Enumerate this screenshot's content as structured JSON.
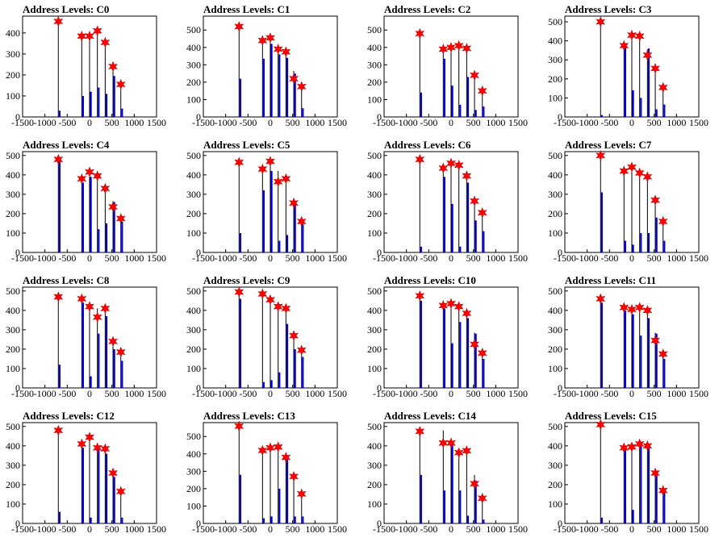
{
  "chart_data": [
    {
      "type": "bar",
      "title": "Address Levels: C0",
      "xlim": [
        -1500,
        1500
      ],
      "ylim": [
        0,
        480
      ],
      "xticks": [
        -1500,
        -1000,
        -500,
        0,
        500,
        1000,
        1500
      ],
      "yticks": [
        0,
        100,
        200,
        300,
        400
      ],
      "bins": [
        {
          "x": -700,
          "bar": 30,
          "line": 460,
          "marker": 455
        },
        {
          "x": -175,
          "bar": 100,
          "line": 385,
          "marker": 385
        },
        {
          "x": 0,
          "bar": 120,
          "line": 390,
          "marker": 385
        },
        {
          "x": 175,
          "bar": 140,
          "line": 405,
          "marker": 410
        },
        {
          "x": 350,
          "bar": 110,
          "line": 355,
          "marker": 355
        },
        {
          "x": 525,
          "bar": 195,
          "line": 240,
          "marker": 240
        },
        {
          "x": 700,
          "bar": 40,
          "line": 155,
          "marker": 155
        }
      ]
    },
    {
      "type": "bar",
      "title": "Address Levels: C1",
      "xlim": [
        -1500,
        1500
      ],
      "ylim": [
        0,
        580
      ],
      "xticks": [
        -1500,
        -1000,
        -500,
        0,
        500,
        1000,
        1500
      ],
      "yticks": [
        0,
        100,
        200,
        300,
        400,
        500
      ],
      "bins": [
        {
          "x": -700,
          "bar": 220,
          "line": 520,
          "marker": 520
        },
        {
          "x": -175,
          "bar": 335,
          "line": 440,
          "marker": 440
        },
        {
          "x": 0,
          "bar": 420,
          "line": 455,
          "marker": 455
        },
        {
          "x": 175,
          "bar": 360,
          "line": 395,
          "marker": 390
        },
        {
          "x": 350,
          "bar": 340,
          "line": 375,
          "marker": 375
        },
        {
          "x": 525,
          "bar": 250,
          "line": 265,
          "marker": 220
        },
        {
          "x": 700,
          "bar": 50,
          "line": 170,
          "marker": 175
        }
      ]
    },
    {
      "type": "bar",
      "title": "Address Levels: C2",
      "xlim": [
        -1500,
        1500
      ],
      "ylim": [
        0,
        580
      ],
      "xticks": [
        -1500,
        -1000,
        -500,
        0,
        500,
        1000,
        1500
      ],
      "yticks": [
        0,
        100,
        200,
        300,
        400,
        500
      ],
      "bins": [
        {
          "x": -700,
          "bar": 140,
          "line": 480,
          "marker": 480
        },
        {
          "x": -175,
          "bar": 335,
          "line": 395,
          "marker": 390
        },
        {
          "x": 0,
          "bar": 180,
          "line": 410,
          "marker": 400
        },
        {
          "x": 175,
          "bar": 70,
          "line": 405,
          "marker": 410
        },
        {
          "x": 350,
          "bar": 230,
          "line": 395,
          "marker": 395
        },
        {
          "x": 525,
          "bar": 40,
          "line": 245,
          "marker": 240
        },
        {
          "x": 700,
          "bar": 60,
          "line": 150,
          "marker": 150
        }
      ]
    },
    {
      "type": "bar",
      "title": "Address Levels: C3",
      "xlim": [
        -1500,
        1500
      ],
      "ylim": [
        0,
        530
      ],
      "xticks": [
        -1500,
        -1000,
        -500,
        0,
        500,
        1000,
        1500
      ],
      "yticks": [
        0,
        100,
        200,
        300,
        400,
        500
      ],
      "bins": [
        {
          "x": -700,
          "bar": 10,
          "line": 500,
          "marker": 500
        },
        {
          "x": -175,
          "bar": 365,
          "line": 375,
          "marker": 375
        },
        {
          "x": 0,
          "bar": 140,
          "line": 430,
          "marker": 430
        },
        {
          "x": 175,
          "bar": 100,
          "line": 425,
          "marker": 425
        },
        {
          "x": 350,
          "bar": 360,
          "line": 355,
          "marker": 325
        },
        {
          "x": 525,
          "bar": 40,
          "line": 255,
          "marker": 255
        },
        {
          "x": 700,
          "bar": 65,
          "line": 155,
          "marker": 155
        }
      ]
    },
    {
      "type": "bar",
      "title": "Address Levels: C4",
      "xlim": [
        -1500,
        1500
      ],
      "ylim": [
        0,
        520
      ],
      "xticks": [
        -1500,
        -1000,
        -500,
        0,
        500,
        1000,
        1500
      ],
      "yticks": [
        0,
        100,
        200,
        300,
        400,
        500
      ],
      "bins": [
        {
          "x": -700,
          "bar": 480,
          "line": 485,
          "marker": 480
        },
        {
          "x": -175,
          "bar": 360,
          "line": 375,
          "marker": 380
        },
        {
          "x": 0,
          "bar": 390,
          "line": 415,
          "marker": 415
        },
        {
          "x": 175,
          "bar": 120,
          "line": 400,
          "marker": 395
        },
        {
          "x": 350,
          "bar": 150,
          "line": 330,
          "marker": 330
        },
        {
          "x": 525,
          "bar": 260,
          "line": 265,
          "marker": 235
        },
        {
          "x": 700,
          "bar": 160,
          "line": 175,
          "marker": 175
        }
      ]
    },
    {
      "type": "bar",
      "title": "Address Levels: C5",
      "xlim": [
        -1500,
        1500
      ],
      "ylim": [
        0,
        520
      ],
      "xticks": [
        -1500,
        -1000,
        -500,
        0,
        500,
        1000,
        1500
      ],
      "yticks": [
        0,
        100,
        200,
        300,
        400,
        500
      ],
      "bins": [
        {
          "x": -700,
          "bar": 100,
          "line": 465,
          "marker": 465
        },
        {
          "x": -175,
          "bar": 320,
          "line": 430,
          "marker": 430
        },
        {
          "x": 0,
          "bar": 420,
          "line": 470,
          "marker": 470
        },
        {
          "x": 175,
          "bar": 60,
          "line": 420,
          "marker": 365
        },
        {
          "x": 350,
          "bar": 90,
          "line": 375,
          "marker": 380
        },
        {
          "x": 525,
          "bar": 250,
          "line": 255,
          "marker": 255
        },
        {
          "x": 700,
          "bar": 150,
          "line": 160,
          "marker": 160
        }
      ]
    },
    {
      "type": "bar",
      "title": "Address Levels: C6",
      "xlim": [
        -1500,
        1500
      ],
      "ylim": [
        0,
        520
      ],
      "xticks": [
        -1500,
        -1000,
        -500,
        0,
        500,
        1000,
        1500
      ],
      "yticks": [
        0,
        100,
        200,
        300,
        400,
        500
      ],
      "bins": [
        {
          "x": -700,
          "bar": 30,
          "line": 475,
          "marker": 480
        },
        {
          "x": -175,
          "bar": 390,
          "line": 435,
          "marker": 435
        },
        {
          "x": 0,
          "bar": 250,
          "line": 460,
          "marker": 460
        },
        {
          "x": 175,
          "bar": 30,
          "line": 445,
          "marker": 450
        },
        {
          "x": 350,
          "bar": 360,
          "line": 395,
          "marker": 395
        },
        {
          "x": 525,
          "bar": 165,
          "line": 260,
          "marker": 265
        },
        {
          "x": 700,
          "bar": 110,
          "line": 205,
          "marker": 205
        }
      ]
    },
    {
      "type": "bar",
      "title": "Address Levels: C7",
      "xlim": [
        -1500,
        1500
      ],
      "ylim": [
        0,
        520
      ],
      "xticks": [
        -1500,
        -1000,
        -500,
        0,
        500,
        1000,
        1500
      ],
      "yticks": [
        0,
        100,
        200,
        300,
        400,
        500
      ],
      "bins": [
        {
          "x": -700,
          "bar": 310,
          "line": 500,
          "marker": 500
        },
        {
          "x": -175,
          "bar": 60,
          "line": 420,
          "marker": 420
        },
        {
          "x": 0,
          "bar": 40,
          "line": 440,
          "marker": 440
        },
        {
          "x": 175,
          "bar": 100,
          "line": 410,
          "marker": 410
        },
        {
          "x": 350,
          "bar": 100,
          "line": 390,
          "marker": 390
        },
        {
          "x": 525,
          "bar": 180,
          "line": 275,
          "marker": 270
        },
        {
          "x": 700,
          "bar": 60,
          "line": 160,
          "marker": 160
        }
      ]
    },
    {
      "type": "bar",
      "title": "Address Levels: C8",
      "xlim": [
        -1500,
        1500
      ],
      "ylim": [
        0,
        520
      ],
      "xticks": [
        -1500,
        -1000,
        -500,
        0,
        500,
        1000,
        1500
      ],
      "yticks": [
        0,
        100,
        200,
        300,
        400,
        500
      ],
      "bins": [
        {
          "x": -700,
          "bar": 120,
          "line": 470,
          "marker": 470
        },
        {
          "x": -175,
          "bar": 440,
          "line": 460,
          "marker": 460
        },
        {
          "x": 0,
          "bar": 60,
          "line": 420,
          "marker": 420
        },
        {
          "x": 175,
          "bar": 280,
          "line": 410,
          "marker": 365
        },
        {
          "x": 350,
          "bar": 370,
          "line": 410,
          "marker": 410
        },
        {
          "x": 525,
          "bar": 200,
          "line": 240,
          "marker": 240
        },
        {
          "x": 700,
          "bar": 140,
          "line": 185,
          "marker": 185
        }
      ]
    },
    {
      "type": "bar",
      "title": "Address Levels: C9",
      "xlim": [
        -1500,
        1500
      ],
      "ylim": [
        0,
        520
      ],
      "xticks": [
        -1500,
        -1000,
        -500,
        0,
        500,
        1000,
        1500
      ],
      "yticks": [
        0,
        100,
        200,
        300,
        400,
        500
      ],
      "bins": [
        {
          "x": -700,
          "bar": 460,
          "line": 500,
          "marker": 495
        },
        {
          "x": -175,
          "bar": 30,
          "line": 485,
          "marker": 485
        },
        {
          "x": 0,
          "bar": 40,
          "line": 455,
          "marker": 455
        },
        {
          "x": 175,
          "bar": 80,
          "line": 420,
          "marker": 420
        },
        {
          "x": 350,
          "bar": 330,
          "line": 410,
          "marker": 410
        },
        {
          "x": 525,
          "bar": 200,
          "line": 270,
          "marker": 270
        },
        {
          "x": 700,
          "bar": 160,
          "line": 195,
          "marker": 195
        }
      ]
    },
    {
      "type": "bar",
      "title": "Address Levels: C10",
      "xlim": [
        -1500,
        1500
      ],
      "ylim": [
        0,
        520
      ],
      "xticks": [
        -1500,
        -1000,
        -500,
        0,
        500,
        1000,
        1500
      ],
      "yticks": [
        0,
        100,
        200,
        300,
        400,
        500
      ],
      "bins": [
        {
          "x": -700,
          "bar": 450,
          "line": 480,
          "marker": 475
        },
        {
          "x": -175,
          "bar": 410,
          "line": 425,
          "marker": 425
        },
        {
          "x": 0,
          "bar": 230,
          "line": 460,
          "marker": 435
        },
        {
          "x": 175,
          "bar": 340,
          "line": 425,
          "marker": 420
        },
        {
          "x": 350,
          "bar": 360,
          "line": 385,
          "marker": 385
        },
        {
          "x": 525,
          "bar": 280,
          "line": 285,
          "marker": 225
        },
        {
          "x": 700,
          "bar": 150,
          "line": 180,
          "marker": 180
        }
      ]
    },
    {
      "type": "bar",
      "title": "Address Levels: C11",
      "xlim": [
        -1500,
        1500
      ],
      "ylim": [
        0,
        520
      ],
      "xticks": [
        -1500,
        -1000,
        -500,
        0,
        500,
        1000,
        1500
      ],
      "yticks": [
        0,
        100,
        200,
        300,
        400,
        500
      ],
      "bins": [
        {
          "x": -700,
          "bar": 440,
          "line": 460,
          "marker": 460
        },
        {
          "x": -175,
          "bar": 400,
          "line": 420,
          "marker": 415
        },
        {
          "x": 0,
          "bar": 380,
          "line": 410,
          "marker": 405
        },
        {
          "x": 175,
          "bar": 270,
          "line": 415,
          "marker": 415
        },
        {
          "x": 350,
          "bar": 360,
          "line": 400,
          "marker": 400
        },
        {
          "x": 525,
          "bar": 280,
          "line": 285,
          "marker": 245
        },
        {
          "x": 700,
          "bar": 150,
          "line": 175,
          "marker": 175
        }
      ]
    },
    {
      "type": "bar",
      "title": "Address Levels: C12",
      "xlim": [
        -1500,
        1500
      ],
      "ylim": [
        0,
        520
      ],
      "xticks": [
        -1500,
        -1000,
        -500,
        0,
        500,
        1000,
        1500
      ],
      "yticks": [
        0,
        100,
        200,
        300,
        400,
        500
      ],
      "bins": [
        {
          "x": -700,
          "bar": 60,
          "line": 480,
          "marker": 480
        },
        {
          "x": -175,
          "bar": 390,
          "line": 410,
          "marker": 410
        },
        {
          "x": 0,
          "bar": 30,
          "line": 445,
          "marker": 445
        },
        {
          "x": 175,
          "bar": 380,
          "line": 390,
          "marker": 390
        },
        {
          "x": 350,
          "bar": 360,
          "line": 385,
          "marker": 385
        },
        {
          "x": 525,
          "bar": 240,
          "line": 260,
          "marker": 260
        },
        {
          "x": 700,
          "bar": 30,
          "line": 160,
          "marker": 165
        }
      ]
    },
    {
      "type": "bar",
      "title": "Address Levels: C13",
      "xlim": [
        -1500,
        1500
      ],
      "ylim": [
        0,
        580
      ],
      "xticks": [
        -1500,
        -1000,
        -500,
        0,
        500,
        1000,
        1500
      ],
      "yticks": [
        0,
        100,
        200,
        300,
        400,
        500
      ],
      "bins": [
        {
          "x": -700,
          "bar": 280,
          "line": 560,
          "marker": 560
        },
        {
          "x": -175,
          "bar": 30,
          "line": 420,
          "marker": 420
        },
        {
          "x": 0,
          "bar": 40,
          "line": 435,
          "marker": 435
        },
        {
          "x": 175,
          "bar": 200,
          "line": 440,
          "marker": 440
        },
        {
          "x": 350,
          "bar": 370,
          "line": 380,
          "marker": 380
        },
        {
          "x": 525,
          "bar": 40,
          "line": 270,
          "marker": 270
        },
        {
          "x": 700,
          "bar": 40,
          "line": 170,
          "marker": 170
        }
      ]
    },
    {
      "type": "bar",
      "title": "Address Levels: C14",
      "xlim": [
        -1500,
        1500
      ],
      "ylim": [
        0,
        520
      ],
      "xticks": [
        -1500,
        -1000,
        -500,
        0,
        500,
        1000,
        1500
      ],
      "yticks": [
        0,
        100,
        200,
        300,
        400,
        500
      ],
      "bins": [
        {
          "x": -700,
          "bar": 250,
          "line": 475,
          "marker": 475
        },
        {
          "x": -175,
          "bar": 170,
          "line": 480,
          "marker": 415
        },
        {
          "x": 0,
          "bar": 410,
          "line": 420,
          "marker": 415
        },
        {
          "x": 175,
          "bar": 170,
          "line": 365,
          "marker": 365
        },
        {
          "x": 350,
          "bar": 40,
          "line": 375,
          "marker": 375
        },
        {
          "x": 525,
          "bar": 220,
          "line": 250,
          "marker": 205
        },
        {
          "x": 700,
          "bar": 20,
          "line": 130,
          "marker": 130
        }
      ]
    },
    {
      "type": "bar",
      "title": "Address Levels: C15",
      "xlim": [
        -1500,
        1500
      ],
      "ylim": [
        0,
        520
      ],
      "xticks": [
        -1500,
        -1000,
        -500,
        0,
        500,
        1000,
        1500
      ],
      "yticks": [
        0,
        100,
        200,
        300,
        400,
        500
      ],
      "bins": [
        {
          "x": -700,
          "bar": 30,
          "line": 510,
          "marker": 510
        },
        {
          "x": -175,
          "bar": 390,
          "line": 395,
          "marker": 390
        },
        {
          "x": 0,
          "bar": 70,
          "line": 395,
          "marker": 395
        },
        {
          "x": 175,
          "bar": 400,
          "line": 415,
          "marker": 410
        },
        {
          "x": 350,
          "bar": 400,
          "line": 405,
          "marker": 400
        },
        {
          "x": 525,
          "bar": 250,
          "line": 260,
          "marker": 260
        },
        {
          "x": 700,
          "bar": 160,
          "line": 170,
          "marker": 170
        }
      ]
    }
  ],
  "colors": {
    "bar": "#0000ee",
    "line": "#000000",
    "marker": "#ff0000",
    "marker_edge": "#cc0000",
    "axes": "#000000"
  },
  "marker_icon": "star-icon"
}
